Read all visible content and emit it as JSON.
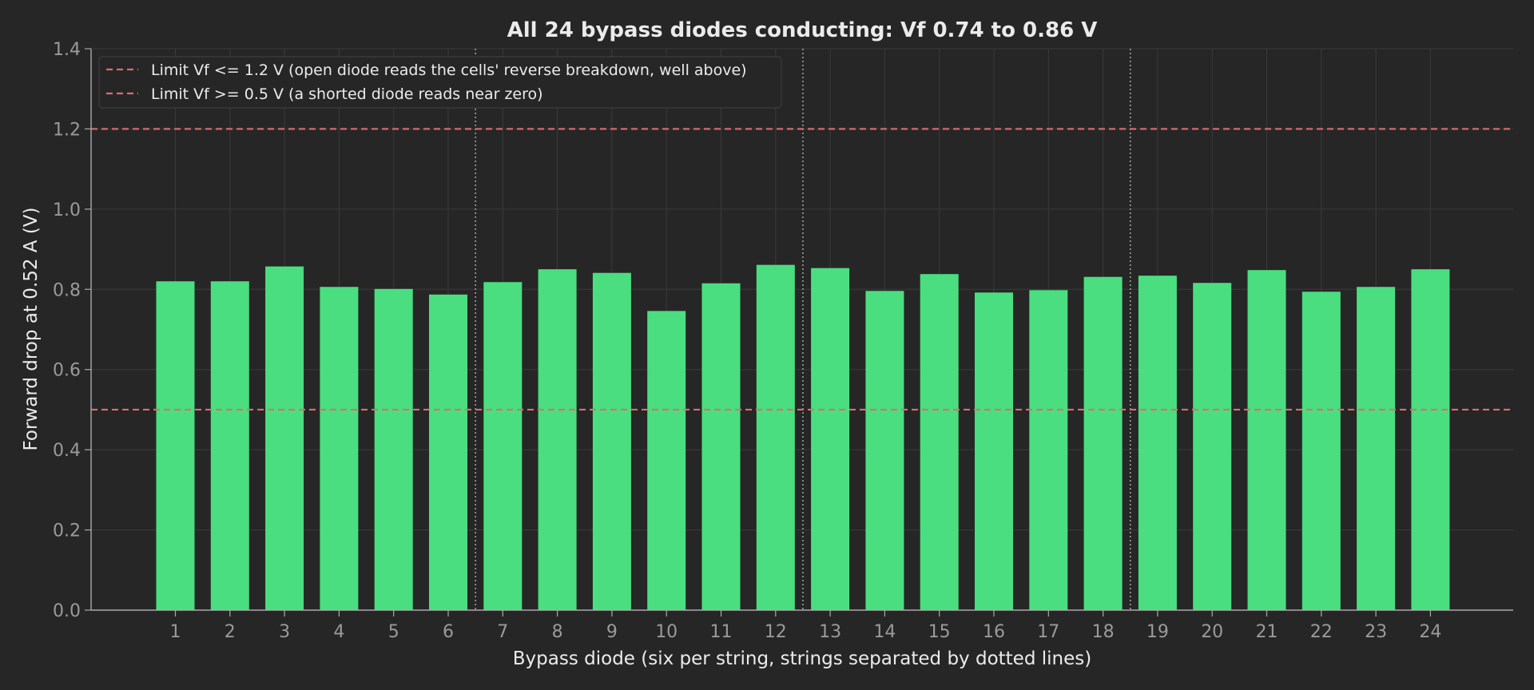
{
  "chart_data": {
    "type": "bar",
    "title": "All 24 bypass diodes conducting: Vf 0.74 to 0.86 V",
    "xlabel": "Bypass diode (six per string, strings separated by dotted lines)",
    "ylabel": "Forward drop at 0.52 A (V)",
    "categories": [
      "1",
      "2",
      "3",
      "4",
      "5",
      "6",
      "7",
      "8",
      "9",
      "10",
      "11",
      "12",
      "13",
      "14",
      "15",
      "16",
      "17",
      "18",
      "19",
      "20",
      "21",
      "22",
      "23",
      "24"
    ],
    "values": [
      0.82,
      0.82,
      0.857,
      0.806,
      0.801,
      0.787,
      0.818,
      0.85,
      0.841,
      0.746,
      0.815,
      0.861,
      0.853,
      0.796,
      0.838,
      0.792,
      0.798,
      0.831,
      0.834,
      0.816,
      0.848,
      0.794,
      0.806,
      0.85
    ],
    "ylim": [
      0.0,
      1.4
    ],
    "yticks": [
      "0.0",
      "0.2",
      "0.4",
      "0.6",
      "0.8",
      "1.0",
      "1.2",
      "1.4"
    ],
    "grid": true,
    "string_separators_after": [
      6,
      12,
      18
    ],
    "limits": [
      {
        "value": 1.2,
        "label": "Limit Vf <= 1.2 V (open diode reads the cells' reverse breakdown, well above)"
      },
      {
        "value": 0.5,
        "label": "Limit Vf >= 0.5 V (a shorted diode reads near zero)"
      }
    ],
    "legend_position": "top-left",
    "colors": {
      "background": "#262626",
      "bar": "#4ade80",
      "limit": "#e06c6c",
      "grid": "#3a3a3a",
      "axis": "#aaaaaa",
      "separator": "#b0b0b0"
    }
  }
}
